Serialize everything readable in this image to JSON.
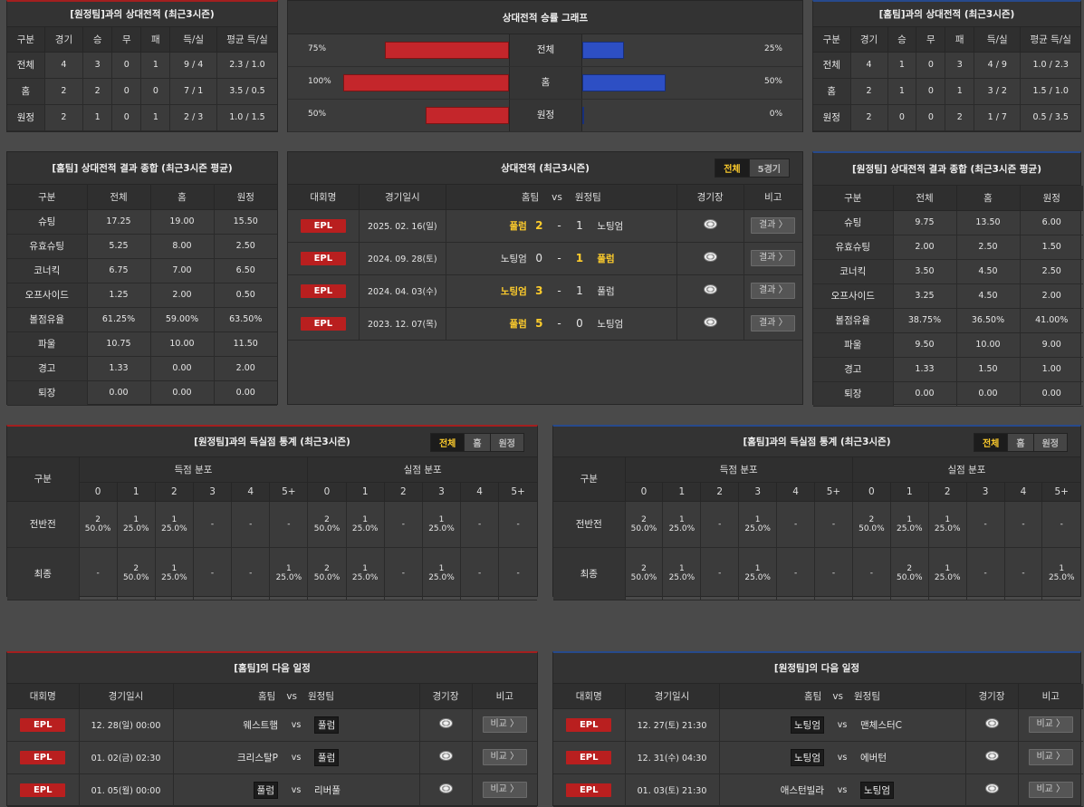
{
  "away_h2h": {
    "title": "[원정팀]과의 상대전적 (최근3시즌)",
    "headers": [
      "구분",
      "경기",
      "승",
      "무",
      "패",
      "득/실",
      "평균 득/실"
    ],
    "rows": [
      [
        "전체",
        "4",
        "3",
        "0",
        "1",
        "9 / 4",
        "2.3 / 1.0"
      ],
      [
        "홈",
        "2",
        "2",
        "0",
        "0",
        "7 / 1",
        "3.5 / 0.5"
      ],
      [
        "원정",
        "2",
        "1",
        "0",
        "1",
        "2 / 3",
        "1.0 / 1.5"
      ]
    ]
  },
  "graph": {
    "title": "상대전적 승률 그래프",
    "rows": [
      {
        "label": "전체",
        "left": "75%",
        "right": "25%",
        "left_value": 0.75,
        "right_value": 0.25
      },
      {
        "label": "홈",
        "left": "100%",
        "right": "50%",
        "left_value": 1.0,
        "right_value": 0.5
      },
      {
        "label": "원정",
        "left": "50%",
        "right": "0%",
        "left_value": 0.5,
        "right_value": 0.0
      }
    ],
    "colors": {
      "left": "#c4262b",
      "right": "#2d4fc4"
    }
  },
  "home_h2h": {
    "title": "[홈팀]과의 상대전적 (최근3시즌)",
    "headers": [
      "구분",
      "경기",
      "승",
      "무",
      "패",
      "득/실",
      "평균 득/실"
    ],
    "rows": [
      [
        "전체",
        "4",
        "1",
        "0",
        "3",
        "4 / 9",
        "1.0 / 2.3"
      ],
      [
        "홈",
        "2",
        "1",
        "0",
        "1",
        "3 / 2",
        "1.5 / 1.0"
      ],
      [
        "원정",
        "2",
        "0",
        "0",
        "2",
        "1 / 7",
        "0.5 / 3.5"
      ]
    ]
  },
  "home_summary": {
    "title": "[홈팀] 상대전적 결과 종합 (최근3시즌 평균)",
    "headers": [
      "구분",
      "전체",
      "홈",
      "원정"
    ],
    "rows": [
      [
        "슈팅",
        "17.25",
        "19.00",
        "15.50"
      ],
      [
        "유효슈팅",
        "5.25",
        "8.00",
        "2.50"
      ],
      [
        "코너킥",
        "6.75",
        "7.00",
        "6.50"
      ],
      [
        "오프사이드",
        "1.25",
        "2.00",
        "0.50"
      ],
      [
        "볼점유율",
        "61.25%",
        "59.00%",
        "63.50%"
      ],
      [
        "파울",
        "10.75",
        "10.00",
        "11.50"
      ],
      [
        "경고",
        "1.33",
        "0.00",
        "2.00"
      ],
      [
        "퇴장",
        "0.00",
        "0.00",
        "0.00"
      ]
    ]
  },
  "matches": {
    "title": "상대전적 (최근3시즌)",
    "tabs": [
      "전체",
      "5경기"
    ],
    "headers": [
      "대회명",
      "경기일시",
      "홈팀",
      "vs",
      "원정팀",
      "경기장",
      "비고"
    ],
    "rows": [
      {
        "league": "EPL",
        "date": "2025. 02. 16(일)",
        "home": "풀럼",
        "hs": "2",
        "as": "1",
        "away": "노팅엄",
        "winner": "home",
        "btn": "결과 〉"
      },
      {
        "league": "EPL",
        "date": "2024. 09. 28(토)",
        "home": "노팅엄",
        "hs": "0",
        "as": "1",
        "away": "풀럼",
        "winner": "away",
        "btn": "결과 〉"
      },
      {
        "league": "EPL",
        "date": "2024. 04. 03(수)",
        "home": "노팅엄",
        "hs": "3",
        "as": "1",
        "away": "풀럼",
        "winner": "home",
        "btn": "결과 〉"
      },
      {
        "league": "EPL",
        "date": "2023. 12. 07(목)",
        "home": "풀럼",
        "hs": "5",
        "as": "0",
        "away": "노팅엄",
        "winner": "home",
        "btn": "결과 〉"
      }
    ]
  },
  "away_summary": {
    "title": "[원정팀] 상대전적 결과 종합 (최근3시즌 평균)",
    "headers": [
      "구분",
      "전체",
      "홈",
      "원정"
    ],
    "rows": [
      [
        "슈팅",
        "9.75",
        "13.50",
        "6.00"
      ],
      [
        "유효슈팅",
        "2.00",
        "2.50",
        "1.50"
      ],
      [
        "코너킥",
        "3.50",
        "4.50",
        "2.50"
      ],
      [
        "오프사이드",
        "3.25",
        "4.50",
        "2.00"
      ],
      [
        "볼점유율",
        "38.75%",
        "36.50%",
        "41.00%"
      ],
      [
        "파울",
        "9.50",
        "10.00",
        "9.00"
      ],
      [
        "경고",
        "1.33",
        "1.50",
        "1.00"
      ],
      [
        "퇴장",
        "0.00",
        "0.00",
        "0.00"
      ]
    ]
  },
  "goals_left": {
    "title": "[원정팀]과의 득실점 통계 (최근3시즌)",
    "tabs": [
      "전체",
      "홈",
      "원정"
    ],
    "col_label": "구분",
    "scored": "득점 분포",
    "conceded": "실점 분포",
    "buckets": [
      "0",
      "1",
      "2",
      "3",
      "4",
      "5+"
    ],
    "rows": [
      {
        "label": "전반전",
        "scored": [
          [
            "2",
            "50.0%"
          ],
          [
            "1",
            "25.0%"
          ],
          [
            "1",
            "25.0%"
          ],
          [
            "-",
            ""
          ],
          [
            "-",
            ""
          ],
          [
            "-",
            ""
          ]
        ],
        "conceded": [
          [
            "2",
            "50.0%"
          ],
          [
            "1",
            "25.0%"
          ],
          [
            "-",
            ""
          ],
          [
            "1",
            "25.0%"
          ],
          [
            "-",
            ""
          ],
          [
            "-",
            ""
          ]
        ]
      },
      {
        "label": "최종",
        "scored": [
          [
            "-",
            ""
          ],
          [
            "2",
            "50.0%"
          ],
          [
            "1",
            "25.0%"
          ],
          [
            "-",
            ""
          ],
          [
            "-",
            ""
          ],
          [
            "1",
            "25.0%"
          ]
        ],
        "conceded": [
          [
            "2",
            "50.0%"
          ],
          [
            "1",
            "25.0%"
          ],
          [
            "-",
            ""
          ],
          [
            "1",
            "25.0%"
          ],
          [
            "-",
            ""
          ],
          [
            "-",
            ""
          ]
        ]
      }
    ]
  },
  "goals_right": {
    "title": "[홈팀]과의 득실점 통계 (최근3시즌)",
    "tabs": [
      "전체",
      "홈",
      "원정"
    ],
    "col_label": "구분",
    "scored": "득점 분포",
    "conceded": "실점 분포",
    "buckets": [
      "0",
      "1",
      "2",
      "3",
      "4",
      "5+"
    ],
    "rows": [
      {
        "label": "전반전",
        "scored": [
          [
            "2",
            "50.0%"
          ],
          [
            "1",
            "25.0%"
          ],
          [
            "-",
            ""
          ],
          [
            "1",
            "25.0%"
          ],
          [
            "-",
            ""
          ],
          [
            "-",
            ""
          ]
        ],
        "conceded": [
          [
            "2",
            "50.0%"
          ],
          [
            "1",
            "25.0%"
          ],
          [
            "1",
            "25.0%"
          ],
          [
            "-",
            ""
          ],
          [
            "-",
            ""
          ],
          [
            "-",
            ""
          ]
        ]
      },
      {
        "label": "최종",
        "scored": [
          [
            "2",
            "50.0%"
          ],
          [
            "1",
            "25.0%"
          ],
          [
            "-",
            ""
          ],
          [
            "1",
            "25.0%"
          ],
          [
            "-",
            ""
          ],
          [
            "-",
            ""
          ]
        ],
        "conceded": [
          [
            "-",
            ""
          ],
          [
            "2",
            "50.0%"
          ],
          [
            "1",
            "25.0%"
          ],
          [
            "-",
            ""
          ],
          [
            "-",
            ""
          ],
          [
            "1",
            "25.0%"
          ]
        ]
      }
    ]
  },
  "next_home": {
    "title": "[홈팀]의 다음 일정",
    "headers": [
      "대회명",
      "경기일시",
      "홈팀",
      "vs",
      "원정팀",
      "경기장",
      "비고"
    ],
    "rows": [
      {
        "league": "EPL",
        "date": "12. 28(일) 00:00",
        "home": "웨스트햄",
        "away": "풀럼",
        "boxed": "away",
        "btn": "비교 〉"
      },
      {
        "league": "EPL",
        "date": "01. 02(금) 02:30",
        "home": "크리스탈P",
        "away": "풀럼",
        "boxed": "away",
        "btn": "비교 〉"
      },
      {
        "league": "EPL",
        "date": "01. 05(월) 00:00",
        "home": "풀럼",
        "away": "리버풀",
        "boxed": "home",
        "btn": "비교 〉"
      }
    ]
  },
  "next_away": {
    "title": "[원정팀]의 다음 일정",
    "headers": [
      "대회명",
      "경기일시",
      "홈팀",
      "vs",
      "원정팀",
      "경기장",
      "비고"
    ],
    "rows": [
      {
        "league": "EPL",
        "date": "12. 27(토) 21:30",
        "home": "노팅엄",
        "away": "맨체스터C",
        "boxed": "home",
        "btn": "비교 〉"
      },
      {
        "league": "EPL",
        "date": "12. 31(수) 04:30",
        "home": "노팅엄",
        "away": "에버턴",
        "boxed": "home",
        "btn": "비교 〉"
      },
      {
        "league": "EPL",
        "date": "01. 03(토) 21:30",
        "home": "애스턴빌라",
        "away": "노팅엄",
        "boxed": "away",
        "btn": "비교 〉"
      }
    ]
  }
}
